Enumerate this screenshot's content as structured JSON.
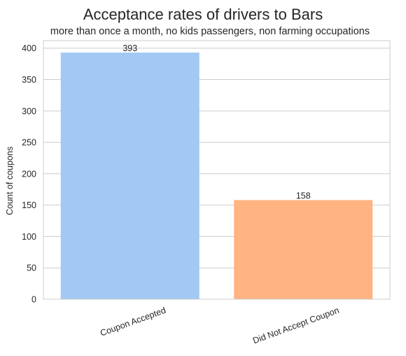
{
  "chart_data": {
    "type": "bar",
    "title": "Acceptance rates of drivers to Bars",
    "subtitle": "more than once a month, no kids passengers, non farming occupations",
    "xlabel": "",
    "ylabel": "Count of coupons",
    "categories": [
      "Coupon Accepted",
      "Did Not Accept Coupon"
    ],
    "values": [
      393,
      158
    ],
    "data_labels": [
      "393",
      "158"
    ],
    "bar_colors": [
      "#a1c9f4",
      "#ffb482"
    ],
    "ylim": [
      0,
      412
    ],
    "yticks": [
      0,
      50,
      100,
      150,
      200,
      250,
      300,
      350,
      400
    ],
    "grid": true,
    "legend": "none"
  }
}
